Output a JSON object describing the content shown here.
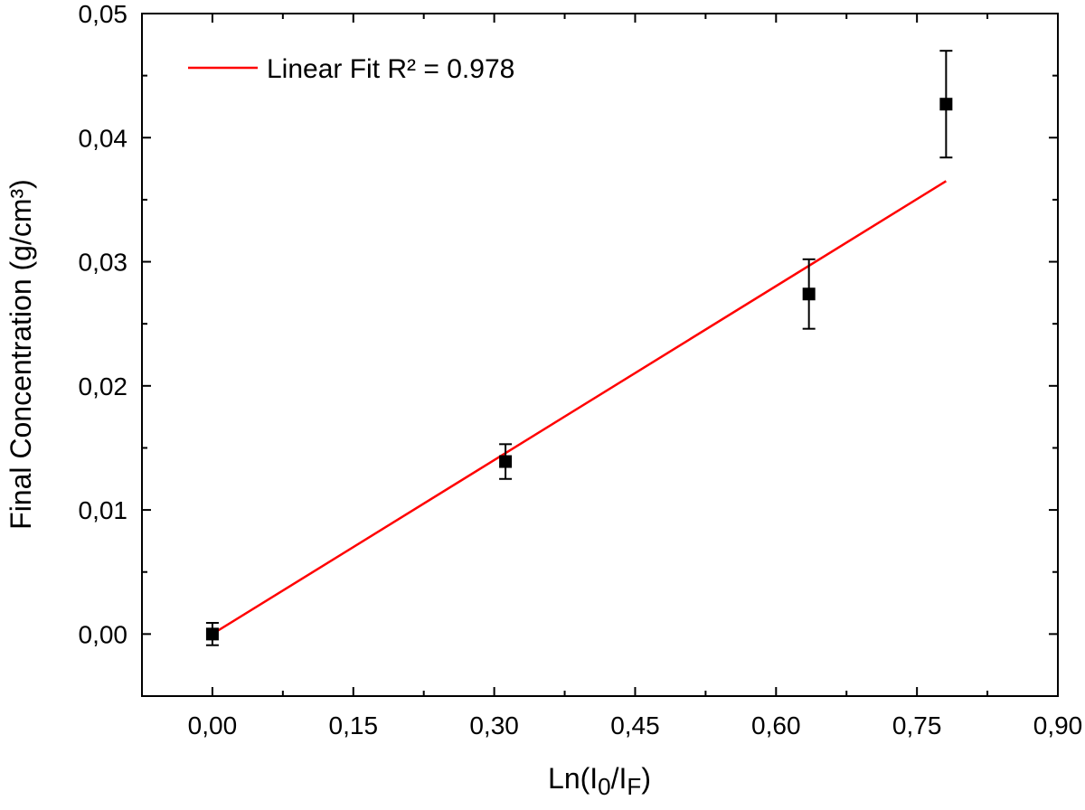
{
  "chart_data": {
    "type": "scatter",
    "xlabel_main": "Ln(I",
    "xlabel_sub0": "0",
    "xlabel_mid": "/I",
    "xlabel_subF": "F",
    "xlabel_close": ")",
    "ylabel": "Final Concentration (g/cm³)",
    "xlim": [
      -0.075,
      0.9
    ],
    "ylim": [
      -0.005,
      0.05
    ],
    "x_ticks": [
      0.0,
      0.15,
      0.3,
      0.45,
      0.6,
      0.75,
      0.9
    ],
    "x_tick_labels": [
      "0,00",
      "0,15",
      "0,30",
      "0,45",
      "0,60",
      "0,75",
      "0,90"
    ],
    "y_ticks": [
      0.0,
      0.01,
      0.02,
      0.03,
      0.04,
      0.05
    ],
    "y_tick_labels": [
      "0,00",
      "0,01",
      "0,02",
      "0,03",
      "0,04",
      "0,05"
    ],
    "grid": false,
    "legend_position": "top-left",
    "series": [
      {
        "kind": "points-with-error",
        "color": "#000000",
        "x": [
          0.0,
          0.312,
          0.635,
          0.781
        ],
        "y": [
          0.0,
          0.0139,
          0.0274,
          0.0427
        ],
        "err": [
          0.0009,
          0.0014,
          0.0028,
          0.0043
        ]
      },
      {
        "kind": "line",
        "name": "Linear Fit R² = 0.978",
        "color": "#ff0000",
        "x": [
          0.0,
          0.781
        ],
        "y": [
          0.0,
          0.0365
        ]
      }
    ]
  }
}
